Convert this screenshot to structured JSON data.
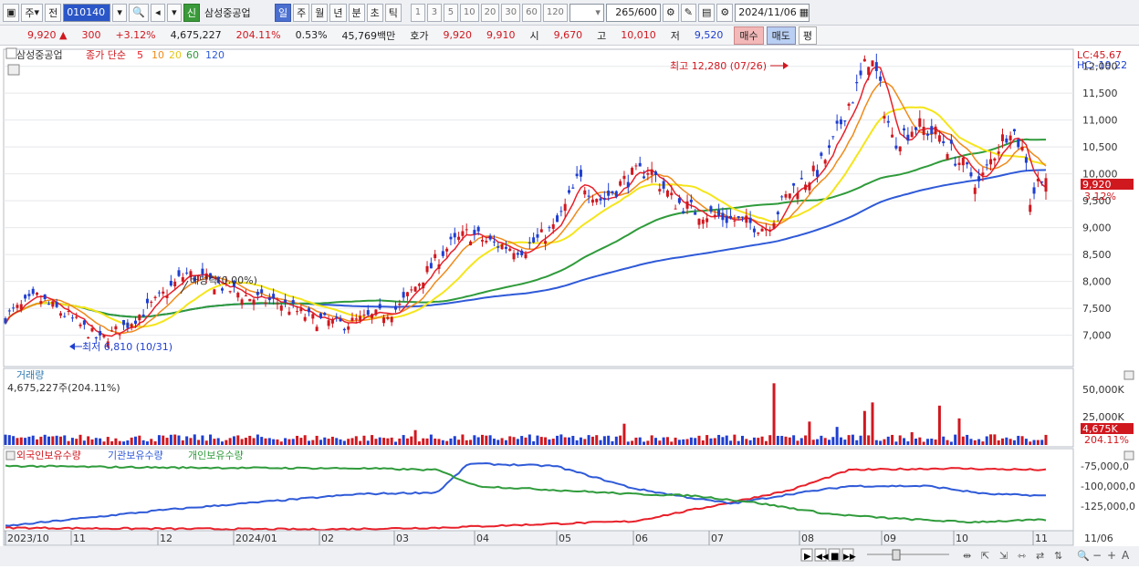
{
  "toolbar": {
    "market_label": "주",
    "prev_label": "전",
    "stock_code": "010140",
    "new_badge": "신",
    "stock_name": "삼성중공업",
    "period_day": "일",
    "period_week": "주",
    "period_month": "월",
    "period_year": "년",
    "period_minute": "분",
    "period_second": "초",
    "period_tick": "틱",
    "intervals": [
      "1",
      "3",
      "5",
      "10",
      "20",
      "30",
      "60",
      "120"
    ],
    "count": "265",
    "count_total": "/600",
    "date": "2024/11/06"
  },
  "quote": {
    "price": "9,920",
    "change": "300",
    "change_pct": "+3.12%",
    "volume": "4,675,227",
    "volume_pct": "204.11%",
    "turnover": "0.53%",
    "amount": "45,769백만",
    "hoga_label": "호가",
    "ask": "9,920",
    "bid": "9,910",
    "open_label": "시",
    "open": "9,670",
    "high_label": "고",
    "high": "10,010",
    "low_label": "저",
    "low": "9,520",
    "buy_label": "매수",
    "sell_label": "매도",
    "avg_label": "평"
  },
  "price_panel": {
    "legend_name": "삼성중공업",
    "legend_close": "종가 단순",
    "ma_periods": [
      "5",
      "10",
      "20",
      "60",
      "120"
    ],
    "max_annotation": "최고 12,280 (07/26)",
    "min_annotation": "최저 6,810 (10/31)",
    "dividend_annotation": "배당락(0.00%)",
    "lc_label": "LC:45.67",
    "hc_label": "HC:-19.22",
    "last_price_label": "9,920",
    "last_pct_label": "3.12%",
    "y_ticks": [
      "12,000",
      "11,500",
      "11,000",
      "10,500",
      "10,000",
      "9,500",
      "9,000",
      "8,500",
      "8,000",
      "7,500",
      "7,000"
    ]
  },
  "volume_panel": {
    "title": "거래량",
    "info": "4,675,227주(204.11%)",
    "y_ticks": [
      "50,000K",
      "25,000K"
    ],
    "last_label": "4,675K",
    "last_pct": "204.11%"
  },
  "holdings_panel": {
    "legend_foreign": "외국인보유수량",
    "legend_inst": "기관보유수량",
    "legend_indiv": "개인보유수량",
    "y_ticks": [
      "-75,000,0",
      "-100,000,0",
      "-125,000,0"
    ]
  },
  "x_axis": {
    "labels": [
      "2023/10",
      "11",
      "12",
      "2024/01",
      "02",
      "03",
      "04",
      "05",
      "06",
      "07",
      "08",
      "09",
      "10",
      "11",
      "11/06"
    ]
  },
  "colors": {
    "up": "#d0181f",
    "down": "#1f3fd0",
    "ma5": "#e8202a",
    "ma10": "#f08a1a",
    "ma20": "#f5e51a",
    "ma60": "#2f9b3b",
    "ma120": "#2f5ad8"
  }
}
